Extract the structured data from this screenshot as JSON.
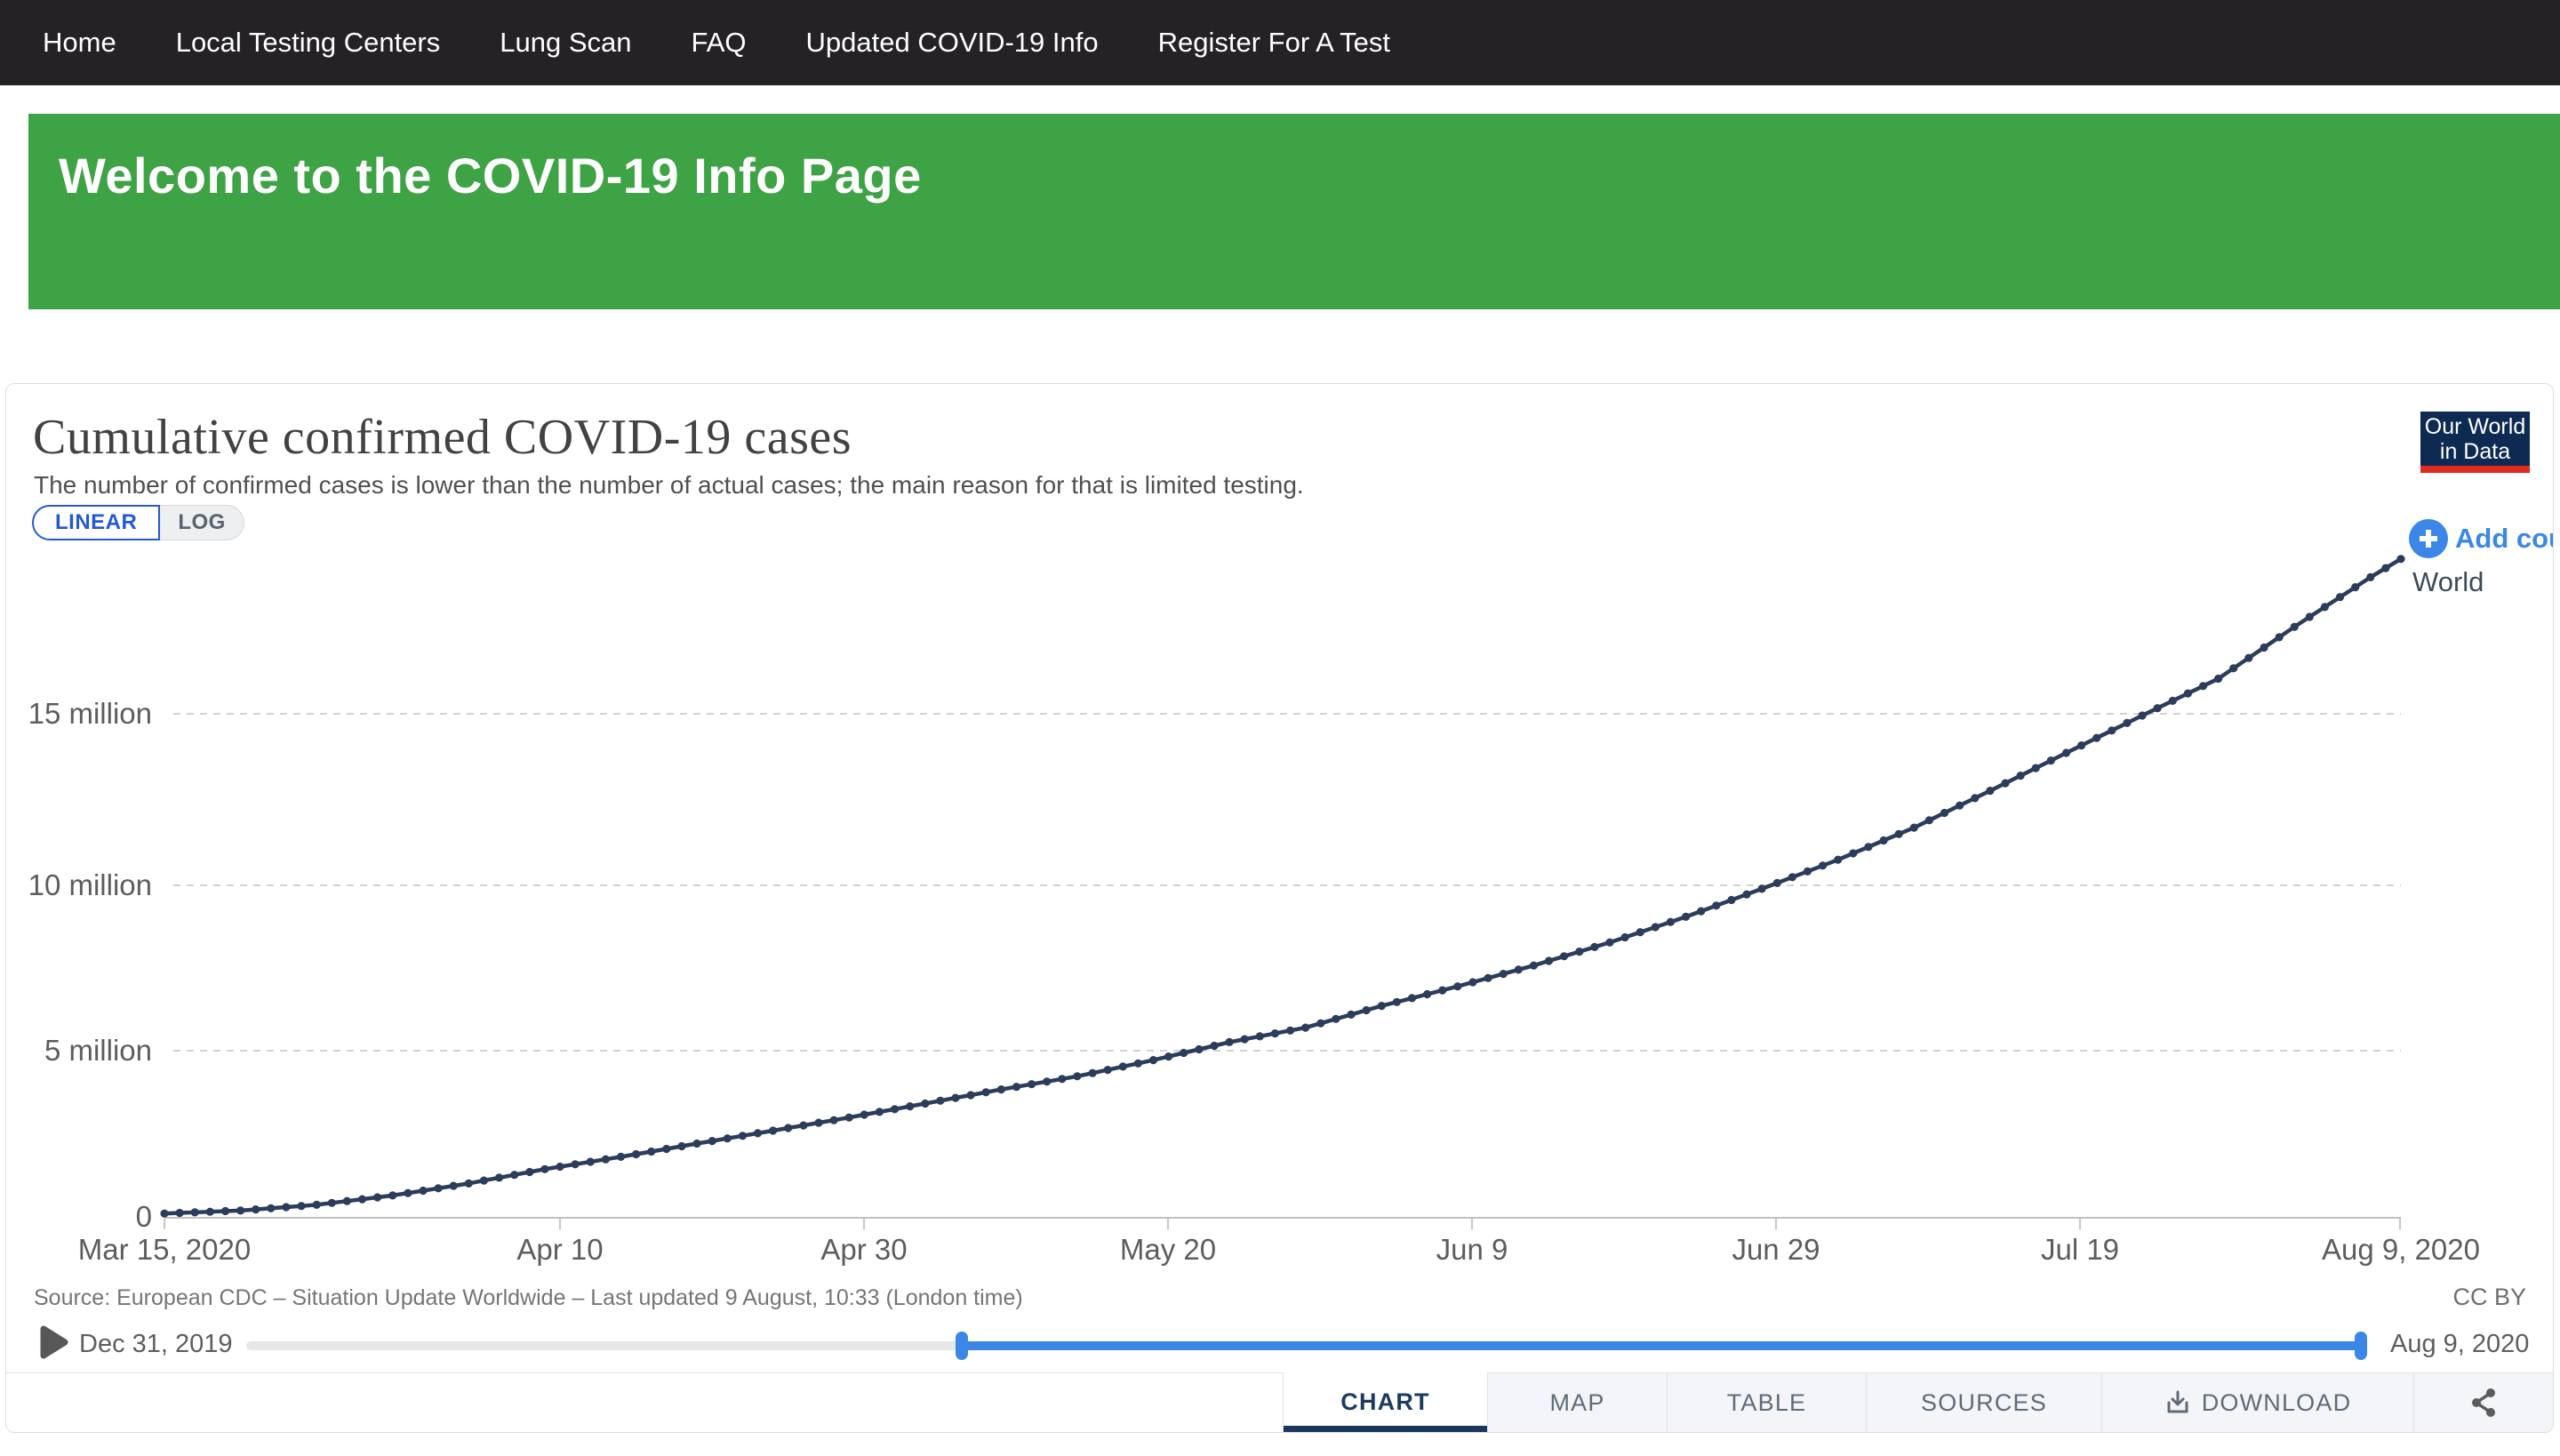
{
  "nav": {
    "items": [
      "Home",
      "Local Testing Centers",
      "Lung Scan",
      "FAQ",
      "Updated COVID-19 Info",
      "Register For A Test"
    ]
  },
  "banner": {
    "title": "Welcome to the COVID-19 Info Page"
  },
  "chart": {
    "title": "Cumulative confirmed COVID-19 cases",
    "subtitle": "The number of confirmed cases is lower than the number of actual cases; the main reason for that is limited testing.",
    "scale_toggle": {
      "linear": "LINEAR",
      "log": "LOG",
      "selected": "LINEAR"
    },
    "logo": {
      "line1": "Our World",
      "line2": "in Data"
    },
    "add_country_label": "Add count",
    "series_label": "World",
    "y_ticks": [
      "0",
      "5 million",
      "10 million",
      "15 million"
    ],
    "x_ticks": [
      "Mar 15, 2020",
      "Apr 10",
      "Apr 30",
      "May 20",
      "Jun 9",
      "Jun 29",
      "Jul 19",
      "Aug 9, 2020"
    ],
    "source": "Source: European CDC – Situation Update Worldwide – Last updated 9 August, 10:33 (London time)",
    "license": "CC BY",
    "timeline": {
      "start": "Dec 31, 2019",
      "end": "Aug 9, 2020"
    },
    "tabs": [
      "CHART",
      "MAP",
      "TABLE",
      "SOURCES",
      "DOWNLOAD"
    ],
    "active_tab": "CHART"
  },
  "colors": {
    "nav_bg": "#252226",
    "banner_green": "#3EA344",
    "line_navy": "#2b3d5a",
    "accent_blue": "#3b87e8",
    "toggle_blue": "#2458d4",
    "tab_navy": "#1d3a5f",
    "logo_navy": "#0d2a52",
    "logo_red": "#e02b20"
  },
  "chart_data": {
    "type": "line",
    "title": "Cumulative confirmed COVID-19 cases",
    "subtitle": "The number of confirmed cases is lower than the number of actual cases; the main reason for that is limited testing.",
    "scale": "linear",
    "grid": true,
    "x_range": [
      "2020-03-15",
      "2020-08-09"
    ],
    "ylim": [
      0,
      20000000
    ],
    "y_tick_values": [
      0,
      5000000,
      10000000,
      15000000
    ],
    "x_tick_dates": [
      "2020-03-15",
      "2020-04-10",
      "2020-04-30",
      "2020-05-20",
      "2020-06-09",
      "2020-06-29",
      "2020-07-19",
      "2020-08-09"
    ],
    "point_markers": true,
    "marker_interval_days": 1,
    "series": [
      {
        "name": "World",
        "color": "#2b3d5a",
        "points": [
          [
            "2020-03-15",
            153517
          ],
          [
            "2020-03-20",
            242488
          ],
          [
            "2020-03-25",
            414179
          ],
          [
            "2020-03-30",
            693224
          ],
          [
            "2020-04-04",
            1051635
          ],
          [
            "2020-04-09",
            1476819
          ],
          [
            "2020-04-14",
            1844863
          ],
          [
            "2020-04-19",
            2241778
          ],
          [
            "2020-04-24",
            2626321
          ],
          [
            "2020-04-29",
            3018681
          ],
          [
            "2020-05-04",
            3435894
          ],
          [
            "2020-05-09",
            3855788
          ],
          [
            "2020-05-14",
            4248389
          ],
          [
            "2020-05-19",
            4731458
          ],
          [
            "2020-05-24",
            5267419
          ],
          [
            "2020-05-29",
            5701337
          ],
          [
            "2020-06-03",
            6348900
          ],
          [
            "2020-06-08",
            6931000
          ],
          [
            "2020-06-13",
            7553182
          ],
          [
            "2020-06-18",
            8242999
          ],
          [
            "2020-06-23",
            9007080
          ],
          [
            "2020-06-28",
            9843073
          ],
          [
            "2020-07-03",
            10710005
          ],
          [
            "2020-07-08",
            11669259
          ],
          [
            "2020-07-13",
            12768307
          ],
          [
            "2020-07-18",
            13898380
          ],
          [
            "2020-07-23",
            15012731
          ],
          [
            "2020-07-28",
            16114449
          ],
          [
            "2020-08-02",
            17660523
          ],
          [
            "2020-08-07",
            19140169
          ],
          [
            "2020-08-09",
            19687156
          ]
        ]
      }
    ]
  }
}
